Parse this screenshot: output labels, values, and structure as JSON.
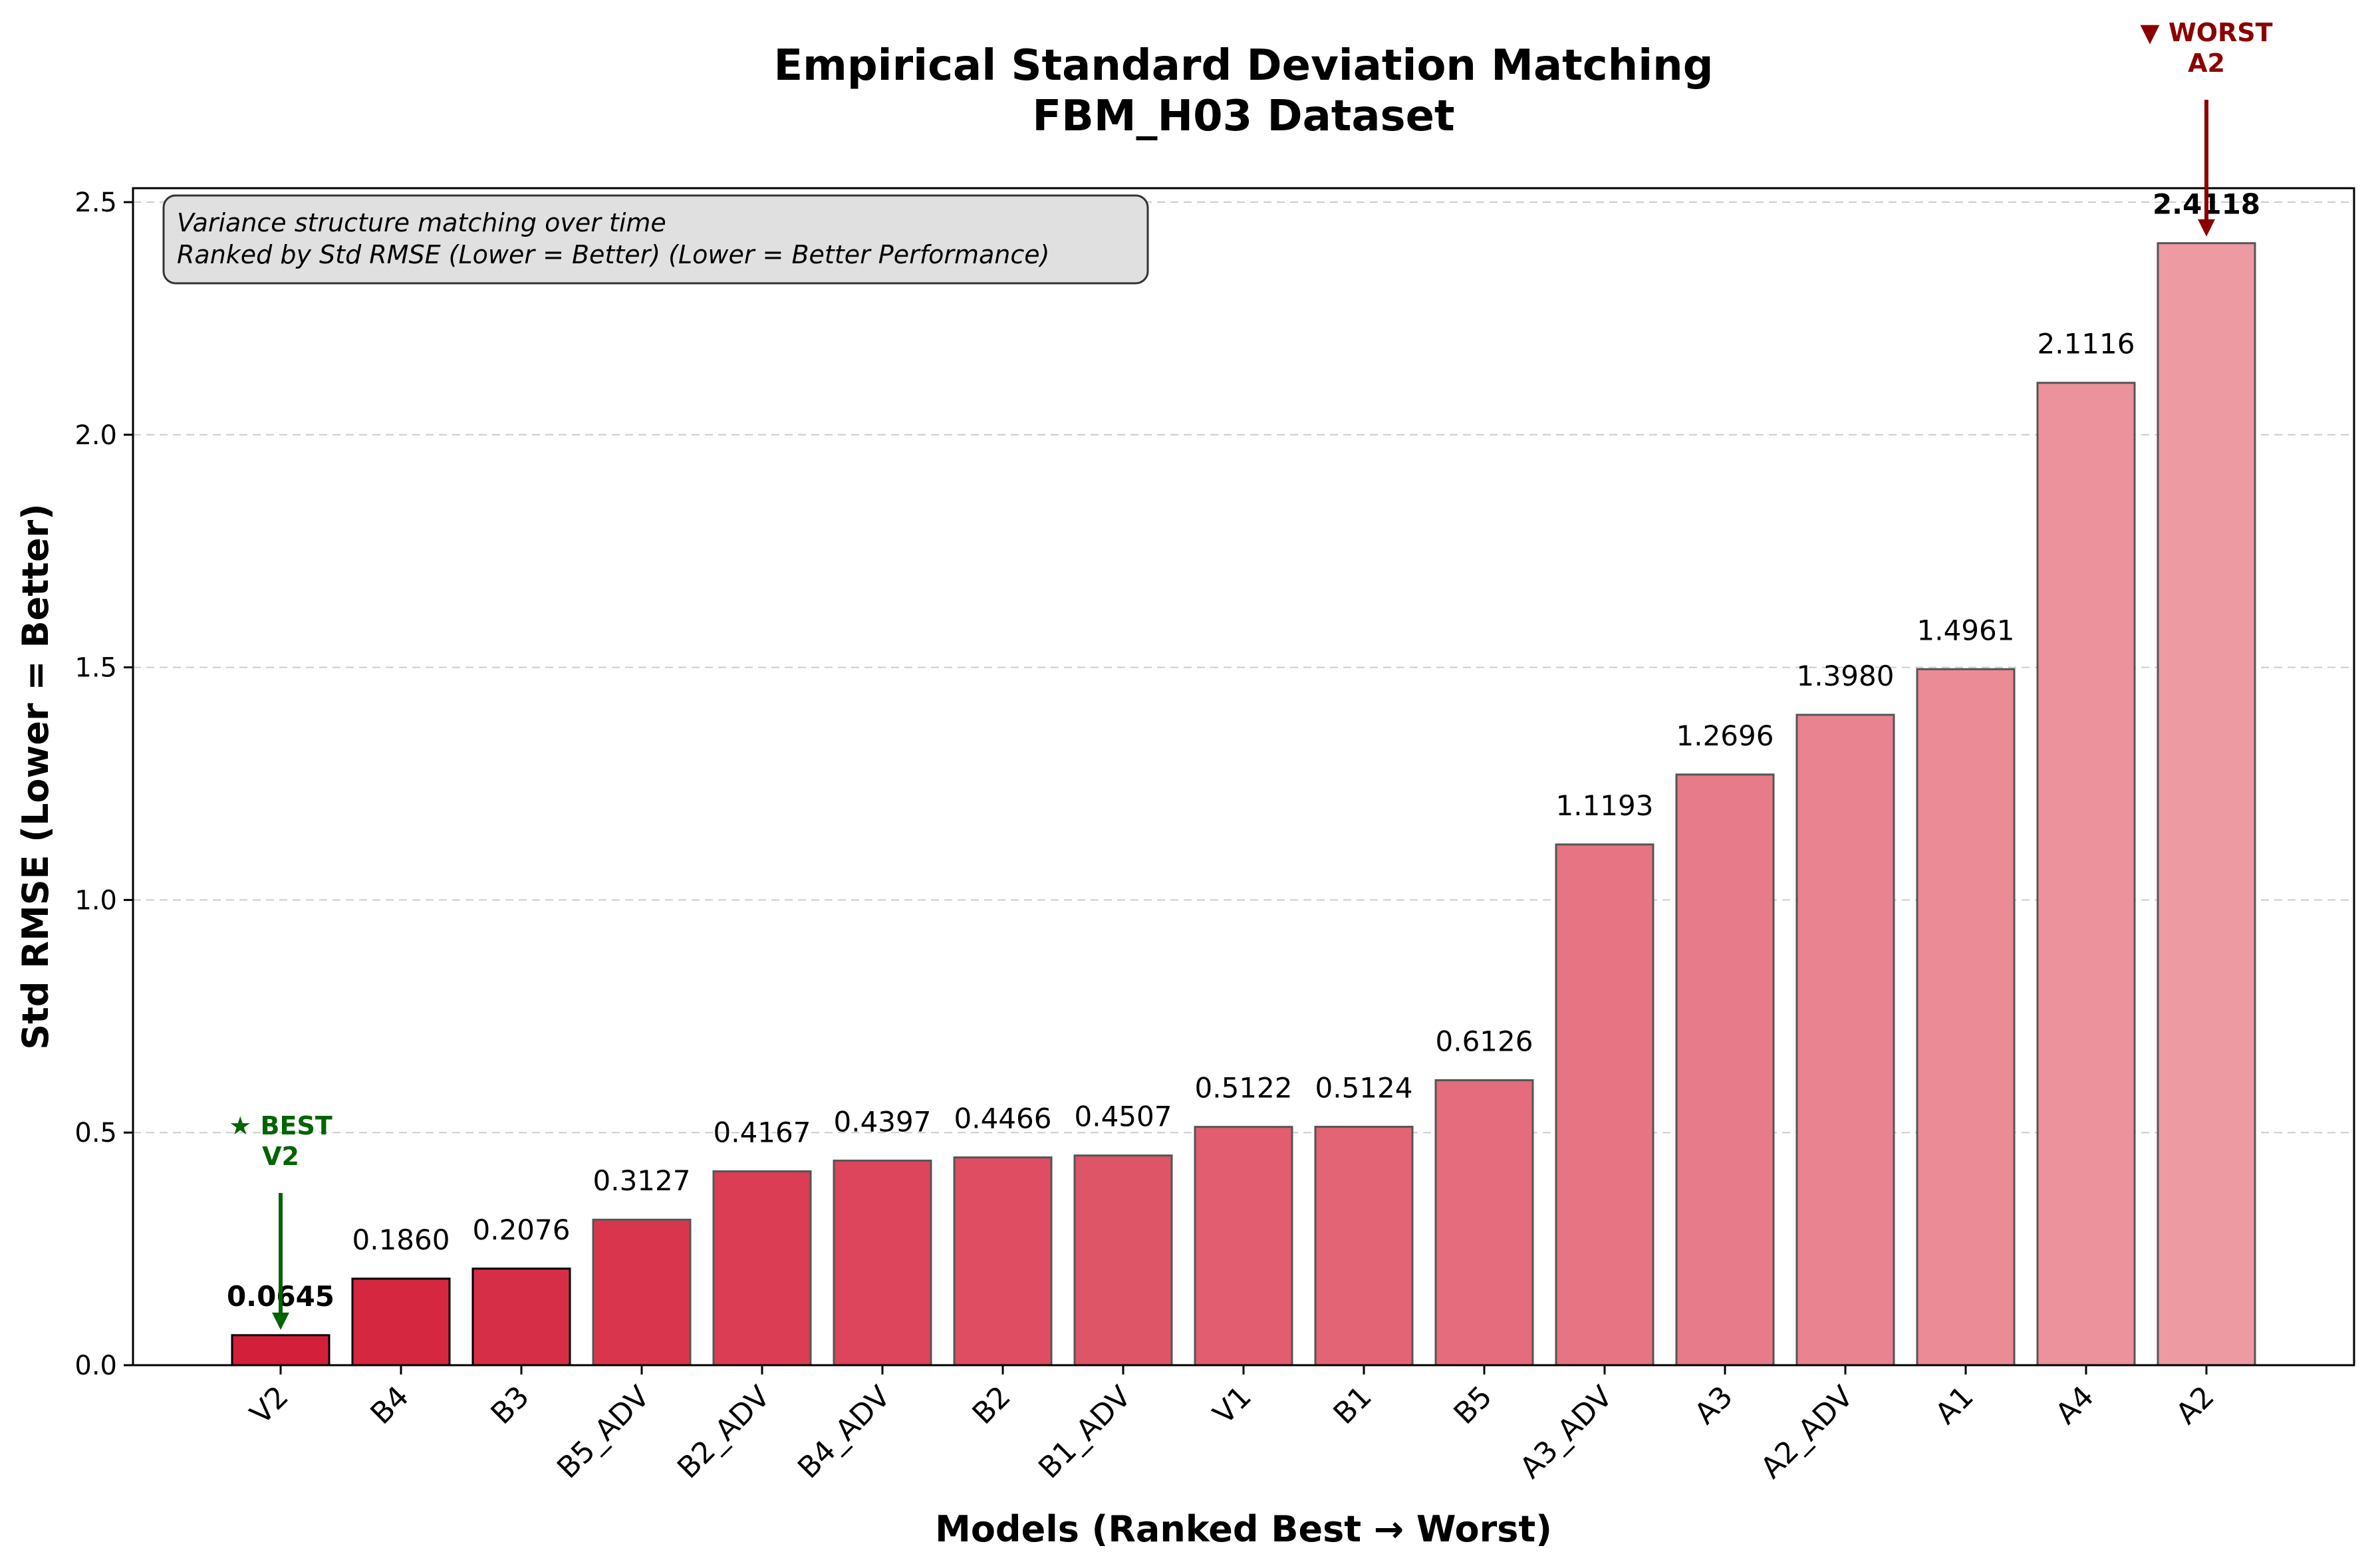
{
  "chart_data": {
    "type": "bar",
    "title": "Empirical Standard Deviation Matching",
    "subtitle": "FBM_H03 Dataset",
    "xlabel": "Models (Ranked Best → Worst)",
    "ylabel": "Std RMSE (Lower = Better)",
    "ylim": [
      0,
      2.53
    ],
    "yticks": [
      "0.0",
      "0.5",
      "1.0",
      "1.5",
      "2.0",
      "2.5"
    ],
    "grid": "horizontal-dashed",
    "categories": [
      "V2",
      "B4",
      "B3",
      "B5_ADV",
      "B2_ADV",
      "B4_ADV",
      "B2",
      "B1_ADV",
      "V1",
      "B1",
      "B5",
      "A3_ADV",
      "A3",
      "A2_ADV",
      "A1",
      "A4",
      "A2"
    ],
    "values": [
      0.0645,
      0.186,
      0.2076,
      0.3127,
      0.4167,
      0.4397,
      0.4466,
      0.4507,
      0.5122,
      0.5124,
      0.6126,
      1.1193,
      1.2696,
      1.398,
      1.4961,
      2.1116,
      2.4118
    ],
    "value_labels": [
      "0.0645",
      "0.1860",
      "0.2076",
      "0.3127",
      "0.4167",
      "0.4397",
      "0.4466",
      "0.4507",
      "0.5122",
      "0.5124",
      "0.6126",
      "1.1193",
      "1.2696",
      "1.3980",
      "1.4961",
      "2.1116",
      "2.4118"
    ],
    "info_box": {
      "line1": "Variance structure matching over time",
      "line2": "Ranked by Std RMSE (Lower = Better) (Lower = Better Performance)"
    },
    "best_annotation": {
      "line1": "★ BEST",
      "line2": "V2",
      "color": "#006400"
    },
    "worst_annotation": {
      "line1": "▼ WORST",
      "line2": "A2",
      "color": "#8b0000"
    },
    "bar_color_start": "#d41f3a",
    "bar_color_end": "#ee9aa3"
  }
}
